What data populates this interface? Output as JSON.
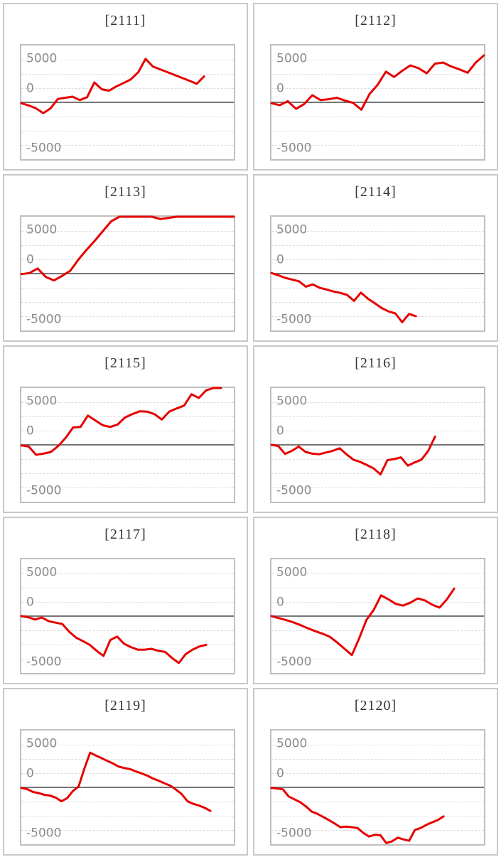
{
  "page": {
    "background": "#ffffff"
  },
  "style": {
    "line_color": "#e60000",
    "panel_border_color": "#c9c9c9",
    "plot_border_color": "#bfbfbf",
    "grid_color": "#dcdcdc",
    "zero_line_color": "#757575",
    "label_color": "#8c8c8c",
    "title_color": "#333333"
  },
  "axis": {
    "tick_labels": [
      "5000",
      "0",
      "-5000"
    ],
    "tick_label_top_percent": [
      12,
      38,
      90.5
    ],
    "grid_line_top_percent": [
      12.5,
      25,
      37.5,
      62.5,
      75,
      87.5
    ]
  },
  "chart_data": [
    {
      "type": "line",
      "title": "[2111]",
      "ylim": [
        -10000,
        10000
      ],
      "yticks": [
        "5000",
        "0",
        "-5000"
      ],
      "grid": true,
      "x_extent": 0.86,
      "values": [
        -150,
        -550,
        -1050,
        -1900,
        -1050,
        600,
        800,
        1000,
        400,
        900,
        3500,
        2300,
        2050,
        2800,
        3400,
        4050,
        5300,
        7650,
        6300,
        5800,
        5300,
        4800,
        4300,
        3800,
        3250,
        4550
      ]
    },
    {
      "type": "line",
      "title": "[2112]",
      "ylim": [
        -10000,
        10000
      ],
      "yticks": [
        "5000",
        "0",
        "-5000"
      ],
      "grid": true,
      "x_extent": 1.0,
      "values": [
        -150,
        -500,
        200,
        -1150,
        -300,
        1250,
        400,
        550,
        800,
        300,
        -100,
        -1300,
        1450,
        3100,
        5400,
        4450,
        5550,
        6500,
        6000,
        5100,
        6800,
        7000,
        6300,
        5800,
        5200,
        7000,
        8250
      ]
    },
    {
      "type": "line",
      "title": "[2113]",
      "ylim": [
        -10000,
        10000
      ],
      "yticks": [
        "5000",
        "0",
        "-5000"
      ],
      "grid": true,
      "x_extent": 1.0,
      "values": [
        -100,
        100,
        900,
        -600,
        -1200,
        -400,
        500,
        2500,
        4200,
        5800,
        7500,
        9200,
        10000,
        10000,
        10000,
        10000,
        10000,
        9600,
        9800,
        10000,
        10000,
        10000,
        10000,
        10000,
        10000,
        10000,
        10000
      ]
    },
    {
      "type": "line",
      "title": "[2114]",
      "ylim": [
        -10000,
        10000
      ],
      "yticks": [
        "5000",
        "0",
        "-5000"
      ],
      "grid": true,
      "x_extent": 0.68,
      "values": [
        100,
        -300,
        -750,
        -1050,
        -1350,
        -2300,
        -1900,
        -2500,
        -2800,
        -3150,
        -3400,
        -3750,
        -4800,
        -3350,
        -4400,
        -5200,
        -6050,
        -6650,
        -7000,
        -8550,
        -7100,
        -7500
      ]
    },
    {
      "type": "line",
      "title": "[2115]",
      "ylim": [
        -10000,
        10000
      ],
      "yticks": [
        "5000",
        "0",
        "-5000"
      ],
      "grid": true,
      "x_extent": 0.94,
      "values": [
        -100,
        -300,
        -1750,
        -1550,
        -1250,
        -200,
        1250,
        3050,
        3150,
        5150,
        4300,
        3450,
        3150,
        3550,
        4800,
        5400,
        5900,
        5850,
        5400,
        4450,
        5850,
        6400,
        6900,
        8900,
        8250,
        9600,
        10000,
        10000
      ]
    },
    {
      "type": "line",
      "title": "[2116]",
      "ylim": [
        -10000,
        10000
      ],
      "yticks": [
        "5000",
        "0",
        "-5000"
      ],
      "grid": true,
      "x_extent": 0.77,
      "values": [
        0,
        -200,
        -1600,
        -1050,
        -300,
        -1250,
        -1550,
        -1650,
        -1350,
        -1050,
        -600,
        -1650,
        -2600,
        -3000,
        -3550,
        -4150,
        -5200,
        -2700,
        -2500,
        -2200,
        -3650,
        -3100,
        -2600,
        -1050,
        1450
      ]
    },
    {
      "type": "line",
      "title": "[2117]",
      "ylim": [
        -10000,
        10000
      ],
      "yticks": [
        "5000",
        "0",
        "-5000"
      ],
      "grid": true,
      "x_extent": 0.87,
      "values": [
        0,
        -200,
        -600,
        -250,
        -900,
        -1150,
        -1400,
        -2750,
        -3800,
        -4400,
        -5050,
        -6100,
        -7000,
        -4200,
        -3600,
        -4850,
        -5450,
        -5900,
        -5900,
        -5750,
        -6100,
        -6300,
        -7350,
        -8250,
        -6700,
        -5900,
        -5350,
        -5050
      ]
    },
    {
      "type": "line",
      "title": "[2118]",
      "ylim": [
        -10000,
        10000
      ],
      "yticks": [
        "5000",
        "0",
        "-5000"
      ],
      "grid": true,
      "x_extent": 0.86,
      "values": [
        0,
        -350,
        -700,
        -1100,
        -1600,
        -2150,
        -2650,
        -3100,
        -3650,
        -4650,
        -5750,
        -6850,
        -3900,
        -650,
        1100,
        3650,
        2950,
        2150,
        1850,
        2350,
        3100,
        2750,
        2000,
        1500,
        2950,
        4850
      ]
    },
    {
      "type": "line",
      "title": "[2119]",
      "ylim": [
        -10000,
        10000
      ],
      "yticks": [
        "5000",
        "0",
        "-5000"
      ],
      "grid": true,
      "x_extent": 0.89,
      "values": [
        -100,
        -300,
        -800,
        -1000,
        -1300,
        -1450,
        -1800,
        -2450,
        -1900,
        -650,
        150,
        3300,
        6100,
        5600,
        5150,
        4650,
        4200,
        3650,
        3400,
        3200,
        2800,
        2450,
        2050,
        1550,
        1150,
        700,
        300,
        -400,
        -1200,
        -2450,
        -2900,
        -3200,
        -3600,
        -4150
      ]
    },
    {
      "type": "line",
      "title": "[2120]",
      "ylim": [
        -10000,
        10000
      ],
      "yticks": [
        "5000",
        "0",
        "-5000"
      ],
      "grid": true,
      "x_extent": 0.81,
      "values": [
        -100,
        -200,
        -350,
        -1600,
        -2100,
        -2600,
        -3350,
        -4250,
        -4650,
        -5200,
        -5750,
        -6350,
        -7000,
        -6900,
        -7000,
        -7150,
        -8000,
        -8650,
        -8350,
        -8400,
        -9800,
        -9500,
        -8850,
        -9150,
        -9400,
        -7500,
        -7150,
        -6600,
        -6150,
        -5750,
        -5100
      ]
    }
  ]
}
